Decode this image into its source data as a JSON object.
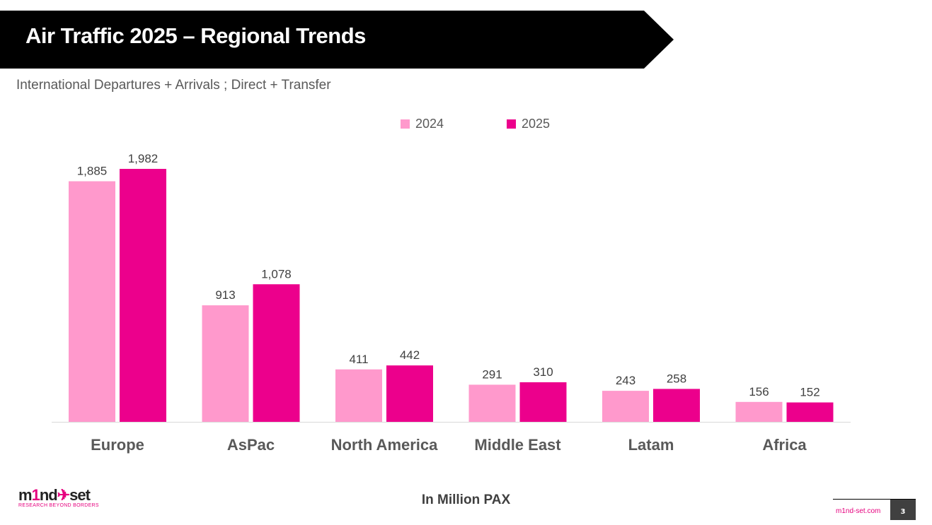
{
  "header": {
    "title": "Air Traffic 2025 – Regional Trends",
    "subtitle": "International Departures + Arrivals ; Direct + Transfer"
  },
  "colors": {
    "banner": "#000000",
    "series_2024": "#ff99cc",
    "series_2025": "#ec008c",
    "accent": "#e6007e"
  },
  "chart_data": {
    "type": "bar",
    "categories": [
      "Europe",
      "AsPac",
      "North America",
      "Middle East",
      "Latam",
      "Africa"
    ],
    "series": [
      {
        "name": "2024",
        "values": [
          1885,
          913,
          411,
          291,
          243,
          156
        ]
      },
      {
        "name": "2025",
        "values": [
          1982,
          1078,
          442,
          310,
          258,
          152
        ]
      }
    ],
    "data_labels": [
      [
        "1,885",
        "913",
        "411",
        "291",
        "243",
        "156"
      ],
      [
        "1,982",
        "1,078",
        "442",
        "310",
        "258",
        "152"
      ]
    ],
    "ylim": [
      0,
      1982
    ],
    "xlabel": "In Million PAX",
    "grid": false,
    "legend": "top-center"
  },
  "footer": {
    "logo_text": "m1nd-set",
    "logo_tagline": "RESEARCH BEYOND BORDERS",
    "site": "m1nd-set.com",
    "page": "3"
  }
}
